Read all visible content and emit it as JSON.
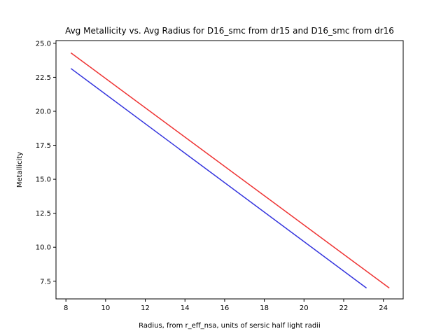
{
  "chart_data": {
    "type": "line",
    "title": "Avg Metallicity vs. Avg Radius for D16_smc from dr15 and D16_smc from dr16",
    "xlabel": "Radius, from r_eff_nsa, units of sersic half light radii",
    "ylabel": "Metallicity",
    "xlim": [
      7.5,
      25.0
    ],
    "ylim": [
      6.2,
      25.2
    ],
    "xticks": [
      8,
      10,
      12,
      14,
      16,
      18,
      20,
      22,
      24
    ],
    "yticks": [
      7.5,
      10.0,
      12.5,
      15.0,
      17.5,
      20.0,
      22.5,
      25.0
    ],
    "grid": false,
    "series": [
      {
        "color": "#3333dd",
        "x": [
          8.25,
          23.15
        ],
        "y": [
          23.15,
          7.0
        ]
      },
      {
        "color": "#ee3333",
        "x": [
          8.25,
          24.3
        ],
        "y": [
          24.3,
          7.0
        ]
      }
    ]
  }
}
